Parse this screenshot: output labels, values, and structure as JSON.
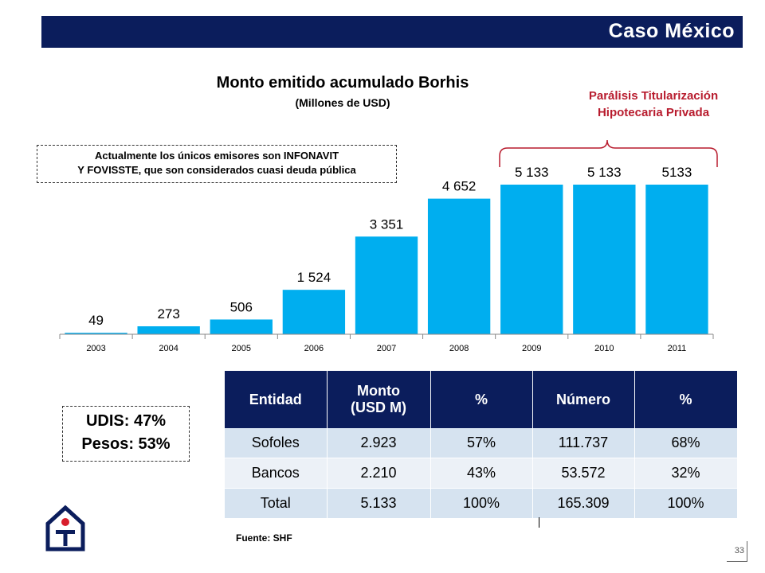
{
  "header": {
    "title": "Caso México"
  },
  "chart_data": {
    "type": "bar",
    "title": "Monto emitido acumulado Borhis",
    "subtitle": "(Millones de USD)",
    "categories": [
      "2003",
      "2004",
      "2005",
      "2006",
      "2007",
      "2008",
      "2009",
      "2010",
      "2011"
    ],
    "values": [
      49,
      273,
      506,
      1524,
      3351,
      4652,
      5133,
      5133,
      5133
    ],
    "data_labels": [
      "49",
      "273",
      "506",
      "1 524",
      "3 351",
      "4 652",
      "5 133",
      "5 133",
      "5133"
    ],
    "xlabel": "",
    "ylabel": "",
    "ylim": [
      0,
      5500
    ],
    "bar_color": "#00aeef",
    "grid": false,
    "legend": "none"
  },
  "annotations": {
    "left_line1": "Actualmente los únicos emisores son INFONAVIT",
    "left_line2": "Y FOVISSTE, que son considerados cuasi deuda pública",
    "paralisis_line1": "Parálisis Titularización",
    "paralisis_line2": "Hipotecaria Privada"
  },
  "table": {
    "headers": [
      {
        "line1": "Entidad",
        "line2": ""
      },
      {
        "line1": "Monto",
        "line2": "(USD M)"
      },
      {
        "line1": "%",
        "line2": ""
      },
      {
        "line1": "Número",
        "line2": ""
      },
      {
        "line1": "%",
        "line2": ""
      }
    ],
    "rows": [
      [
        "Sofoles",
        "2.923",
        "57%",
        "111.737",
        "68%"
      ],
      [
        "Bancos",
        "2.210",
        "43%",
        "53.572",
        "32%"
      ],
      [
        "Total",
        "5.133",
        "100%",
        "165.309",
        "100%"
      ]
    ]
  },
  "udis": {
    "line1": "UDIS: 47%",
    "line2": "Pesos: 53%"
  },
  "source": "Fuente: SHF",
  "page_number": "33",
  "colors": {
    "navy": "#0b1d5c",
    "bar": "#00aeef",
    "accent_red": "#b81c2e"
  }
}
